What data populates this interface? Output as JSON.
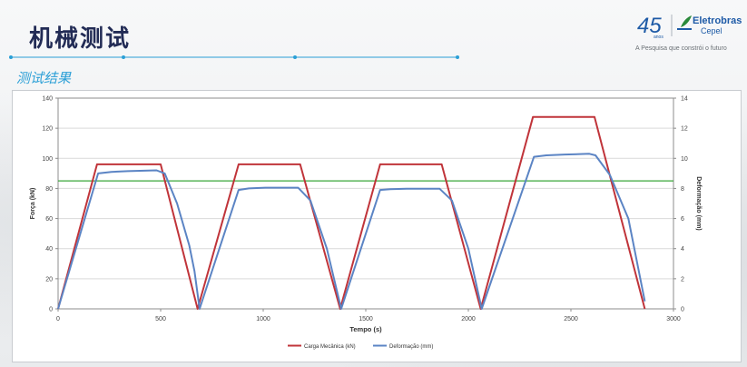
{
  "slide": {
    "title": "机械测试",
    "subtitle": "测试结果"
  },
  "logo": {
    "number": "45",
    "number_sub": "anos",
    "name": "Eletrobras",
    "sub": "Cepel",
    "tagline": "A Pesquisa que constrói o futuro",
    "icon": "eletrobras-leaf-icon"
  },
  "colors": {
    "title": "#222b55",
    "accent": "#2a9fd6",
    "load_series": "#c0343a",
    "deformation_series": "#5b84c4",
    "reference_line": "#3aa63a"
  },
  "chart_data": {
    "type": "line",
    "title": "",
    "xlabel": "Tempo (s)",
    "ylabel_left": "Força (kN)",
    "ylabel_right": "Deformação (mm)",
    "xlim": [
      0,
      3000
    ],
    "ylim_left": [
      0,
      140
    ],
    "ylim_right": [
      0,
      14
    ],
    "x_ticks": [
      "0",
      "500",
      "1000",
      "1500",
      "2000",
      "2500",
      "3000"
    ],
    "y_ticks_left": [
      "0",
      "20",
      "40",
      "60",
      "80",
      "100",
      "120",
      "140"
    ],
    "y_ticks_right": [
      "0",
      "2",
      "4",
      "6",
      "8",
      "10",
      "12",
      "14"
    ],
    "grid": true,
    "legend_position": "bottom-center",
    "reference_line": {
      "axis": "left",
      "y": 85
    },
    "series": [
      {
        "name": "Carga Mecânica (kN)",
        "axis": "left",
        "x": [
          0,
          190,
          500,
          680,
          880,
          1180,
          1375,
          1570,
          1870,
          2060,
          2315,
          2615,
          2860
        ],
        "y": [
          0,
          96,
          96,
          0,
          96,
          96,
          0,
          96,
          96,
          0,
          127.5,
          127.5,
          0
        ]
      },
      {
        "name": "Deformação (mm)",
        "axis": "right",
        "x": [
          0,
          195,
          260,
          340,
          480,
          520,
          580,
          640,
          665,
          690,
          880,
          930,
          1010,
          1170,
          1230,
          1310,
          1380,
          1570,
          1620,
          1700,
          1860,
          1920,
          2000,
          2065,
          2320,
          2380,
          2470,
          2590,
          2620,
          2690,
          2780,
          2860
        ],
        "y": [
          0,
          9.0,
          9.1,
          9.15,
          9.2,
          9.0,
          7.0,
          4.2,
          2.5,
          0,
          7.9,
          8.0,
          8.05,
          8.05,
          7.2,
          4.0,
          0,
          7.9,
          7.95,
          7.98,
          7.98,
          7.2,
          4.0,
          0,
          10.1,
          10.2,
          10.25,
          10.3,
          10.2,
          8.9,
          6.0,
          0.5
        ]
      }
    ]
  }
}
